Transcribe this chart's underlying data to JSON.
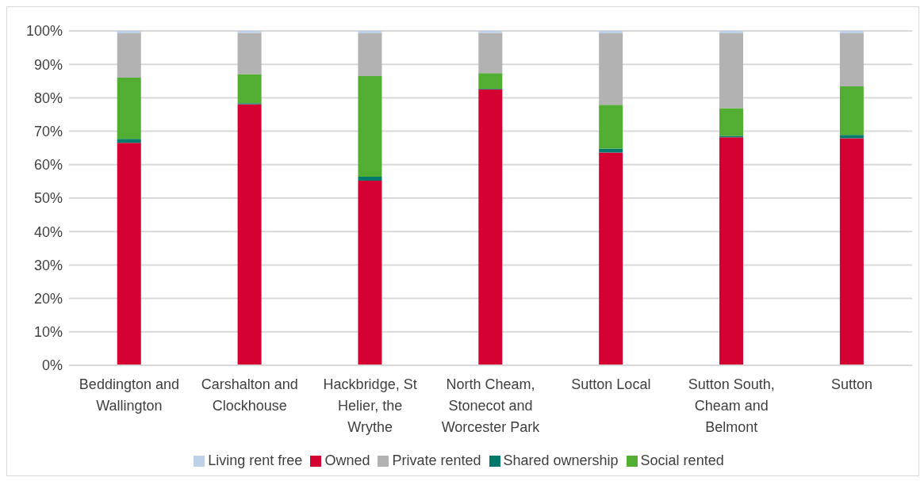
{
  "chart_data": {
    "type": "bar",
    "stacked": true,
    "categories": [
      "Beddington and Wallington",
      "Carshalton and Clockhouse",
      "Hackbridge, St Helier, the Wrythe",
      "North Cheam, Stonecot and Worcester Park",
      "Sutton Local",
      "Sutton South, Cheam and Belmont",
      "Sutton"
    ],
    "series": [
      {
        "name": "Owned",
        "color": "#d50032",
        "values": [
          66.5,
          78.1,
          55.2,
          82.5,
          63.6,
          68.2,
          67.9
        ]
      },
      {
        "name": "Shared ownership",
        "color": "#00786a",
        "values": [
          1.2,
          0.3,
          1.2,
          0.2,
          1.2,
          0.4,
          1.0
        ]
      },
      {
        "name": "Social rented",
        "color": "#52ae32",
        "values": [
          18.3,
          8.7,
          30.1,
          4.7,
          13.1,
          8.3,
          14.5
        ]
      },
      {
        "name": "Private rented",
        "color": "#b2b2b2",
        "values": [
          13.3,
          12.3,
          12.8,
          12.0,
          21.4,
          22.4,
          15.9
        ]
      },
      {
        "name": "Living rent free",
        "color": "#bdd1e8",
        "values": [
          0.7,
          0.6,
          0.7,
          0.6,
          0.7,
          0.7,
          0.7
        ]
      }
    ],
    "ylim": [
      0,
      100
    ],
    "yticks": [
      {
        "value": 0,
        "label": "0%"
      },
      {
        "value": 10,
        "label": "10%"
      },
      {
        "value": 20,
        "label": "20%"
      },
      {
        "value": 30,
        "label": "30%"
      },
      {
        "value": 40,
        "label": "40%"
      },
      {
        "value": 50,
        "label": "50%"
      },
      {
        "value": 60,
        "label": "60%"
      },
      {
        "value": 70,
        "label": "70%"
      },
      {
        "value": 80,
        "label": "80%"
      },
      {
        "value": 90,
        "label": "90%"
      },
      {
        "value": 100,
        "label": "100%"
      }
    ],
    "grid": "y",
    "legend": "bottom"
  }
}
